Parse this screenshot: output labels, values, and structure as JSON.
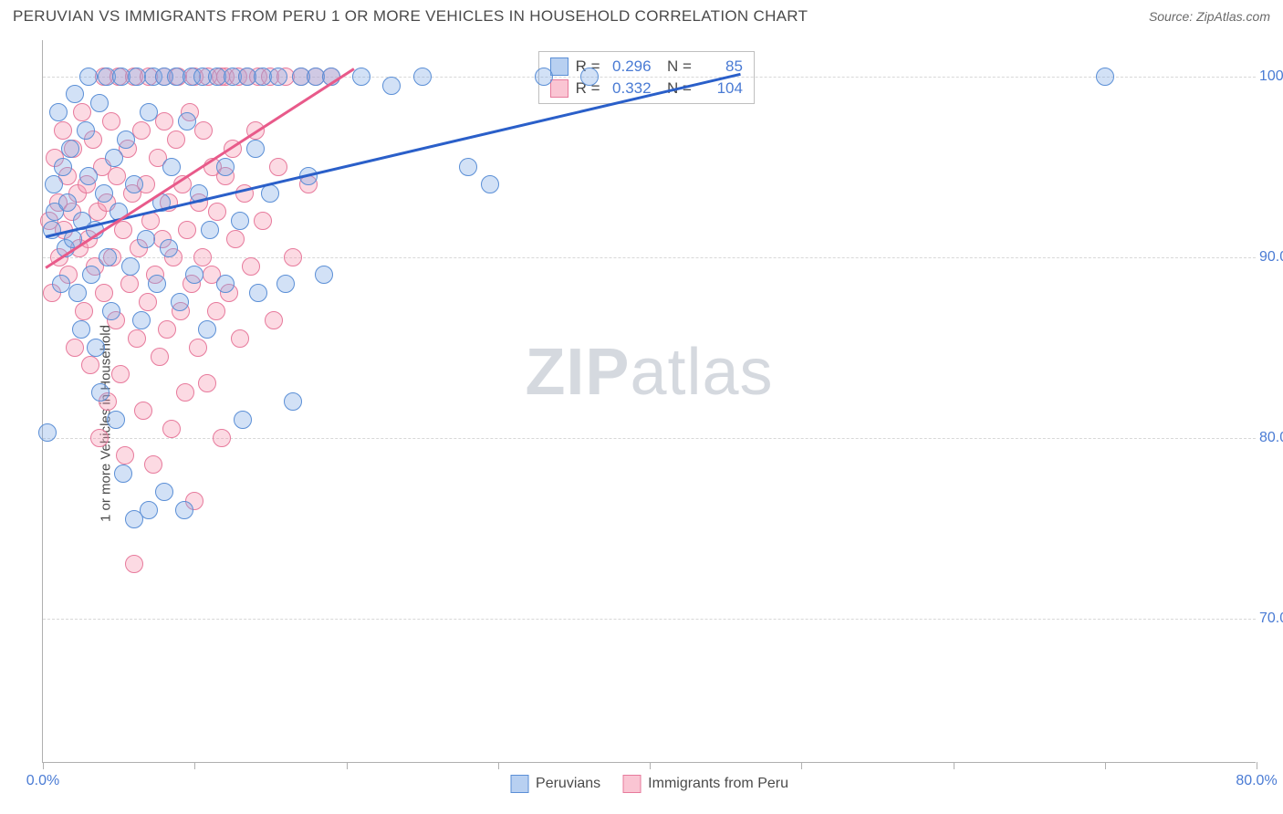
{
  "header": {
    "title": "PERUVIAN VS IMMIGRANTS FROM PERU 1 OR MORE VEHICLES IN HOUSEHOLD CORRELATION CHART",
    "source": "Source: ZipAtlas.com"
  },
  "chart": {
    "type": "scatter",
    "ylabel": "1 or more Vehicles in Household",
    "xlim": [
      0,
      80
    ],
    "ylim": [
      62,
      102
    ],
    "xticks": [
      0,
      10,
      20,
      30,
      40,
      50,
      60,
      70,
      80
    ],
    "xticks_labeled": [
      {
        "v": 0,
        "label": "0.0%"
      },
      {
        "v": 80,
        "label": "80.0%"
      }
    ],
    "yticks": [
      {
        "v": 70,
        "label": "70.0%"
      },
      {
        "v": 80,
        "label": "80.0%"
      },
      {
        "v": 90,
        "label": "90.0%"
      },
      {
        "v": 100,
        "label": "100.0%"
      }
    ],
    "grid_color": "#d8d8d8",
    "background_color": "#ffffff",
    "axis_label_color": "#4a7bd4",
    "series": [
      {
        "name": "Peruvians",
        "color_fill": "rgba(125,170,230,0.35)",
        "color_stroke": "#5b8fd6",
        "class": "blue",
        "R": "0.296",
        "N": "85",
        "trend": {
          "x1": 0.2,
          "y1": 91.2,
          "x2": 46,
          "y2": 100.2
        },
        "points": [
          [
            0.3,
            80.3
          ],
          [
            0.6,
            91.5
          ],
          [
            0.7,
            94.0
          ],
          [
            0.8,
            92.5
          ],
          [
            1.0,
            98.0
          ],
          [
            1.2,
            88.5
          ],
          [
            1.3,
            95.0
          ],
          [
            1.5,
            90.5
          ],
          [
            1.6,
            93.0
          ],
          [
            1.8,
            96.0
          ],
          [
            2.0,
            91.0
          ],
          [
            2.1,
            99.0
          ],
          [
            2.3,
            88.0
          ],
          [
            2.5,
            86.0
          ],
          [
            2.6,
            92.0
          ],
          [
            2.8,
            97.0
          ],
          [
            3.0,
            94.5
          ],
          [
            3.0,
            100.0
          ],
          [
            3.2,
            89.0
          ],
          [
            3.4,
            91.5
          ],
          [
            3.5,
            85.0
          ],
          [
            3.7,
            98.5
          ],
          [
            3.8,
            82.5
          ],
          [
            4.0,
            93.5
          ],
          [
            4.2,
            100.0
          ],
          [
            4.3,
            90.0
          ],
          [
            4.5,
            87.0
          ],
          [
            4.7,
            95.5
          ],
          [
            4.8,
            81.0
          ],
          [
            5.0,
            92.5
          ],
          [
            5.2,
            100.0
          ],
          [
            5.3,
            78.0
          ],
          [
            5.5,
            96.5
          ],
          [
            5.8,
            89.5
          ],
          [
            6.0,
            75.5
          ],
          [
            6.0,
            94.0
          ],
          [
            6.2,
            100.0
          ],
          [
            6.5,
            86.5
          ],
          [
            6.8,
            91.0
          ],
          [
            7.0,
            76.0
          ],
          [
            7.0,
            98.0
          ],
          [
            7.3,
            100.0
          ],
          [
            7.5,
            88.5
          ],
          [
            7.8,
            93.0
          ],
          [
            8.0,
            100.0
          ],
          [
            8.0,
            77.0
          ],
          [
            8.3,
            90.5
          ],
          [
            8.5,
            95.0
          ],
          [
            8.8,
            100.0
          ],
          [
            9.0,
            87.5
          ],
          [
            9.3,
            76.0
          ],
          [
            9.5,
            97.5
          ],
          [
            9.8,
            100.0
          ],
          [
            10.0,
            89.0
          ],
          [
            10.3,
            93.5
          ],
          [
            10.5,
            100.0
          ],
          [
            10.8,
            86.0
          ],
          [
            11.0,
            91.5
          ],
          [
            11.5,
            100.0
          ],
          [
            12.0,
            95.0
          ],
          [
            12.0,
            88.5
          ],
          [
            12.5,
            100.0
          ],
          [
            13.0,
            92.0
          ],
          [
            13.2,
            81.0
          ],
          [
            13.5,
            100.0
          ],
          [
            14.0,
            96.0
          ],
          [
            14.2,
            88.0
          ],
          [
            14.5,
            100.0
          ],
          [
            15.0,
            93.5
          ],
          [
            15.5,
            100.0
          ],
          [
            16.0,
            88.5
          ],
          [
            16.5,
            82.0
          ],
          [
            17.0,
            100.0
          ],
          [
            17.5,
            94.5
          ],
          [
            18.0,
            100.0
          ],
          [
            18.5,
            89.0
          ],
          [
            19.0,
            100.0
          ],
          [
            21.0,
            100.0
          ],
          [
            23.0,
            99.5
          ],
          [
            25.0,
            100.0
          ],
          [
            28.0,
            95.0
          ],
          [
            29.5,
            94.0
          ],
          [
            33.0,
            100.0
          ],
          [
            36.0,
            100.0
          ],
          [
            70.0,
            100.0
          ]
        ]
      },
      {
        "name": "Immigrants from Peru",
        "color_fill": "rgba(245,150,175,0.35)",
        "color_stroke": "#e77a9c",
        "class": "pink",
        "R": "0.332",
        "N": "104",
        "trend": {
          "x1": 0.2,
          "y1": 89.5,
          "x2": 20.5,
          "y2": 100.5
        },
        "points": [
          [
            0.4,
            92.0
          ],
          [
            0.6,
            88.0
          ],
          [
            0.8,
            95.5
          ],
          [
            1.0,
            93.0
          ],
          [
            1.1,
            90.0
          ],
          [
            1.3,
            97.0
          ],
          [
            1.4,
            91.5
          ],
          [
            1.6,
            94.5
          ],
          [
            1.7,
            89.0
          ],
          [
            1.9,
            92.5
          ],
          [
            2.0,
            96.0
          ],
          [
            2.1,
            85.0
          ],
          [
            2.3,
            93.5
          ],
          [
            2.4,
            90.5
          ],
          [
            2.6,
            98.0
          ],
          [
            2.7,
            87.0
          ],
          [
            2.9,
            94.0
          ],
          [
            3.0,
            91.0
          ],
          [
            3.1,
            84.0
          ],
          [
            3.3,
            96.5
          ],
          [
            3.4,
            89.5
          ],
          [
            3.6,
            92.5
          ],
          [
            3.7,
            80.0
          ],
          [
            3.9,
            95.0
          ],
          [
            4.0,
            88.0
          ],
          [
            4.0,
            100.0
          ],
          [
            4.2,
            93.0
          ],
          [
            4.3,
            82.0
          ],
          [
            4.5,
            97.5
          ],
          [
            4.6,
            90.0
          ],
          [
            4.8,
            86.5
          ],
          [
            4.9,
            94.5
          ],
          [
            5.0,
            100.0
          ],
          [
            5.1,
            83.5
          ],
          [
            5.3,
            91.5
          ],
          [
            5.4,
            79.0
          ],
          [
            5.6,
            96.0
          ],
          [
            5.7,
            88.5
          ],
          [
            5.9,
            93.5
          ],
          [
            6.0,
            100.0
          ],
          [
            6.0,
            73.0
          ],
          [
            6.2,
            85.5
          ],
          [
            6.3,
            90.5
          ],
          [
            6.5,
            97.0
          ],
          [
            6.6,
            81.5
          ],
          [
            6.8,
            94.0
          ],
          [
            6.9,
            87.5
          ],
          [
            7.0,
            100.0
          ],
          [
            7.1,
            92.0
          ],
          [
            7.3,
            78.5
          ],
          [
            7.4,
            89.0
          ],
          [
            7.6,
            95.5
          ],
          [
            7.7,
            84.5
          ],
          [
            7.9,
            91.0
          ],
          [
            8.0,
            100.0
          ],
          [
            8.0,
            97.5
          ],
          [
            8.2,
            86.0
          ],
          [
            8.3,
            93.0
          ],
          [
            8.5,
            80.5
          ],
          [
            8.6,
            90.0
          ],
          [
            8.8,
            96.5
          ],
          [
            8.9,
            100.0
          ],
          [
            9.1,
            87.0
          ],
          [
            9.2,
            94.0
          ],
          [
            9.4,
            82.5
          ],
          [
            9.5,
            91.5
          ],
          [
            9.7,
            98.0
          ],
          [
            9.8,
            88.5
          ],
          [
            10.0,
            100.0
          ],
          [
            10.0,
            76.5
          ],
          [
            10.2,
            85.0
          ],
          [
            10.3,
            93.0
          ],
          [
            10.5,
            90.0
          ],
          [
            10.6,
            97.0
          ],
          [
            10.8,
            83.0
          ],
          [
            10.9,
            100.0
          ],
          [
            11.1,
            89.0
          ],
          [
            11.2,
            95.0
          ],
          [
            11.4,
            87.0
          ],
          [
            11.5,
            92.5
          ],
          [
            11.7,
            100.0
          ],
          [
            11.8,
            80.0
          ],
          [
            12.0,
            94.5
          ],
          [
            12.0,
            100.0
          ],
          [
            12.3,
            88.0
          ],
          [
            12.5,
            96.0
          ],
          [
            12.7,
            91.0
          ],
          [
            12.9,
            100.0
          ],
          [
            13.0,
            85.5
          ],
          [
            13.3,
            93.5
          ],
          [
            13.5,
            100.0
          ],
          [
            13.7,
            89.5
          ],
          [
            14.0,
            97.0
          ],
          [
            14.2,
            100.0
          ],
          [
            14.5,
            92.0
          ],
          [
            15.0,
            100.0
          ],
          [
            15.2,
            86.5
          ],
          [
            15.5,
            95.0
          ],
          [
            16.0,
            100.0
          ],
          [
            16.5,
            90.0
          ],
          [
            17.0,
            100.0
          ],
          [
            17.5,
            94.0
          ],
          [
            18.0,
            100.0
          ],
          [
            19.0,
            100.0
          ]
        ]
      }
    ],
    "stats_box": {
      "left_pct": 40.8,
      "top_pct": 1.5
    },
    "legend": {
      "items": [
        {
          "class": "blue",
          "label": "Peruvians"
        },
        {
          "class": "pink",
          "label": "Immigrants from Peru"
        }
      ]
    },
    "watermark": {
      "zip": "ZIP",
      "atlas": "atlas"
    }
  }
}
